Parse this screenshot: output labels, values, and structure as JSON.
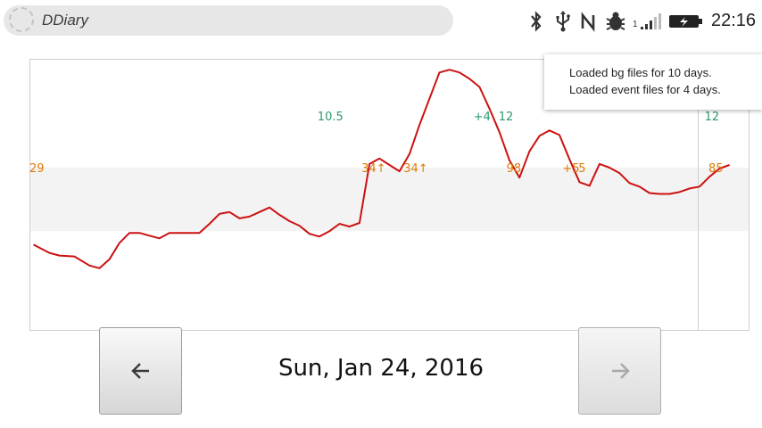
{
  "status_bar": {
    "app_title": "DDiary",
    "signal_sim": "1",
    "time": "22:16"
  },
  "notification": {
    "lines": [
      "Loaded bg files for 10 days.",
      "Loaded event files for 4 days."
    ]
  },
  "navigation": {
    "date": "Sun, Jan 24, 2016",
    "prev_icon": "arrow-left-icon",
    "next_icon": "arrow-right-icon",
    "next_enabled": false
  },
  "colors": {
    "glucose_line": "#cc1111",
    "target_band": "#f3f3f3",
    "carb_labels": "#dd7a00",
    "insulin_labels": "#2c9a6c"
  },
  "chart_data": {
    "type": "line",
    "title": "",
    "xlabel": "",
    "ylabel": "",
    "series": [
      {
        "values": [
          [
            0.4,
            95
          ],
          [
            2,
            86
          ],
          [
            3,
            83
          ],
          [
            4.5,
            82
          ],
          [
            6,
            72
          ],
          [
            7,
            69
          ],
          [
            8,
            79
          ],
          [
            9,
            97
          ],
          [
            10,
            108
          ],
          [
            11,
            108
          ],
          [
            12,
            105
          ],
          [
            13,
            102
          ],
          [
            14,
            108
          ],
          [
            15,
            108
          ],
          [
            16,
            108
          ],
          [
            17,
            108
          ],
          [
            18,
            118
          ],
          [
            19,
            129
          ],
          [
            20,
            131
          ],
          [
            21,
            124
          ],
          [
            22,
            126
          ],
          [
            23,
            131
          ],
          [
            24,
            136
          ],
          [
            25,
            128
          ],
          [
            26,
            121
          ],
          [
            27,
            116
          ],
          [
            28,
            107
          ],
          [
            29,
            104
          ],
          [
            30,
            110
          ],
          [
            31,
            118
          ],
          [
            32,
            115
          ],
          [
            33,
            119
          ],
          [
            34,
            184
          ],
          [
            35,
            190
          ],
          [
            36,
            183
          ],
          [
            37,
            176
          ],
          [
            38,
            195
          ],
          [
            39,
            227
          ],
          [
            40,
            256
          ],
          [
            41,
            285
          ],
          [
            42,
            288
          ],
          [
            43,
            285
          ],
          [
            44,
            278
          ],
          [
            45,
            269
          ],
          [
            46,
            245
          ],
          [
            47,
            219
          ],
          [
            48,
            188
          ],
          [
            49,
            169
          ],
          [
            50,
            198
          ],
          [
            51,
            215
          ],
          [
            52,
            221
          ],
          [
            53,
            216
          ],
          [
            54,
            189
          ],
          [
            55,
            164
          ],
          [
            56,
            160
          ],
          [
            57,
            184
          ],
          [
            58,
            180
          ],
          [
            59,
            174
          ],
          [
            60,
            163
          ],
          [
            61,
            159
          ],
          [
            62,
            152
          ],
          [
            63,
            151
          ],
          [
            64,
            151
          ],
          [
            65,
            153
          ],
          [
            66,
            157
          ],
          [
            67,
            159
          ],
          [
            68,
            170
          ],
          [
            69,
            179
          ],
          [
            70,
            183
          ]
        ]
      }
    ],
    "target_range": [
      110,
      180
    ],
    "event_labels": [
      {
        "x": 0,
        "y": 180,
        "text": "29",
        "kind": "carbs"
      },
      {
        "x": 33.2,
        "y": 180,
        "text": "34↑",
        "kind": "carbs"
      },
      {
        "x": 37.4,
        "y": 180,
        "text": "34↑",
        "kind": "carbs"
      },
      {
        "x": 47.7,
        "y": 180,
        "text": "98",
        "kind": "carbs"
      },
      {
        "x": 53.3,
        "y": 180,
        "text": "+5",
        "kind": "carbs"
      },
      {
        "x": 54.9,
        "y": 180,
        "text": "5",
        "kind": "carbs"
      },
      {
        "x": 67.9,
        "y": 180,
        "text": "85",
        "kind": "carbs"
      },
      {
        "x": 28.8,
        "y": 237,
        "text": "10.5",
        "kind": "insulin"
      },
      {
        "x": 44.4,
        "y": 237,
        "text": "+4",
        "kind": "insulin"
      },
      {
        "x": 46.9,
        "y": 237,
        "text": "12",
        "kind": "insulin"
      },
      {
        "x": 67.5,
        "y": 237,
        "text": "12",
        "kind": "insulin"
      }
    ]
  }
}
